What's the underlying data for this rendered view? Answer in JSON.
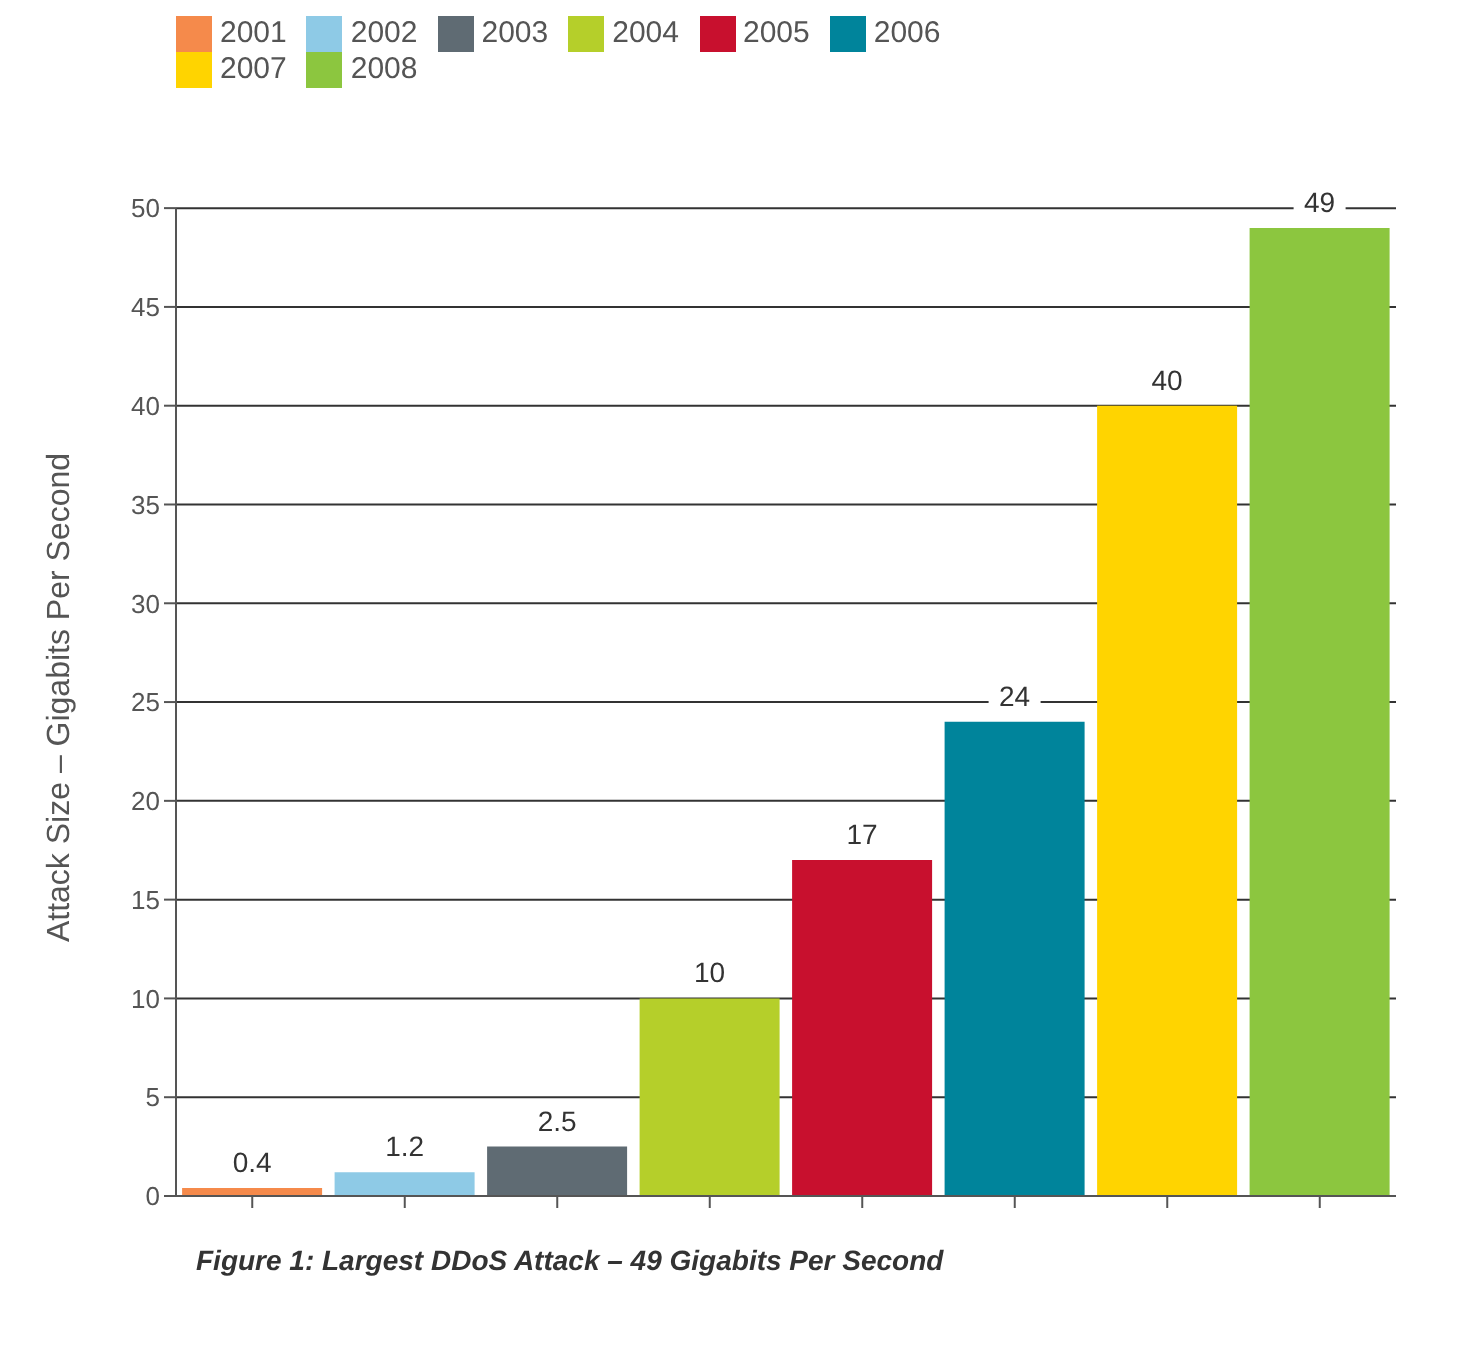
{
  "chart_data": {
    "type": "bar",
    "title": "Figure 1: Largest DDoS Attack – 49 Gigabits Per Second",
    "ylabel": "Attack Size – Gigabits Per Second",
    "categories": [
      null,
      null,
      null,
      null,
      null,
      null,
      null,
      null
    ],
    "series": [
      {
        "name": "2001",
        "color": "#f58a4b",
        "values": [
          0.4,
          null,
          null,
          null,
          null,
          null,
          null,
          null
        ]
      },
      {
        "name": "2002",
        "color": "#8ecae6",
        "values": [
          null,
          1.2,
          null,
          null,
          null,
          null,
          null,
          null
        ]
      },
      {
        "name": "2003",
        "color": "#5f6b73",
        "values": [
          null,
          null,
          2.5,
          null,
          null,
          null,
          null,
          null
        ]
      },
      {
        "name": "2004",
        "color": "#b5cf2a",
        "values": [
          null,
          null,
          null,
          10,
          null,
          null,
          null,
          null
        ]
      },
      {
        "name": "2005",
        "color": "#c8102e",
        "values": [
          null,
          null,
          null,
          null,
          17,
          null,
          null,
          null
        ]
      },
      {
        "name": "2006",
        "color": "#00849b",
        "values": [
          null,
          null,
          null,
          null,
          null,
          24,
          null,
          null
        ]
      },
      {
        "name": "2007",
        "color": "#ffd400",
        "values": [
          null,
          null,
          null,
          null,
          null,
          null,
          40,
          null
        ]
      },
      {
        "name": "2008",
        "color": "#8cc63f",
        "values": [
          null,
          null,
          null,
          null,
          null,
          null,
          null,
          49
        ]
      }
    ],
    "ylim": [
      0,
      50
    ],
    "yticks": [
      0,
      5,
      10,
      15,
      20,
      25,
      30,
      35,
      40,
      45,
      50
    ],
    "grid": "y",
    "legend": "top left",
    "data_labels": true
  }
}
